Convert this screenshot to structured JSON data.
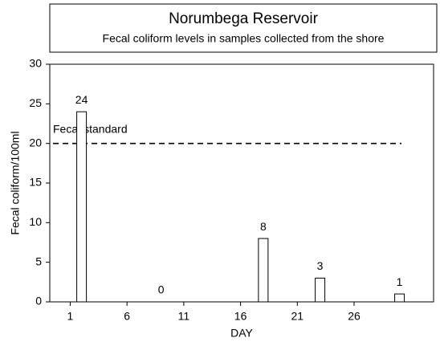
{
  "chart_data": {
    "type": "bar",
    "title": "Norumbega Reservoir",
    "subtitle": "Fecal coliform levels in samples collected from the shore",
    "x_label": "DAY",
    "y_label": "Fecal coliform/100ml",
    "x": [
      2,
      9,
      18,
      23,
      30
    ],
    "values": [
      24,
      0,
      8,
      3,
      1
    ],
    "color": "#ffffff",
    "xlim": [
      -0.8,
      33
    ],
    "xticks": [
      1,
      6,
      11,
      16,
      21,
      26
    ],
    "ylim": [
      0,
      30
    ],
    "yticks": [
      0,
      5,
      10,
      15,
      20,
      25,
      30
    ],
    "standard": {
      "value": 20,
      "label": "Fecal standard"
    }
  }
}
